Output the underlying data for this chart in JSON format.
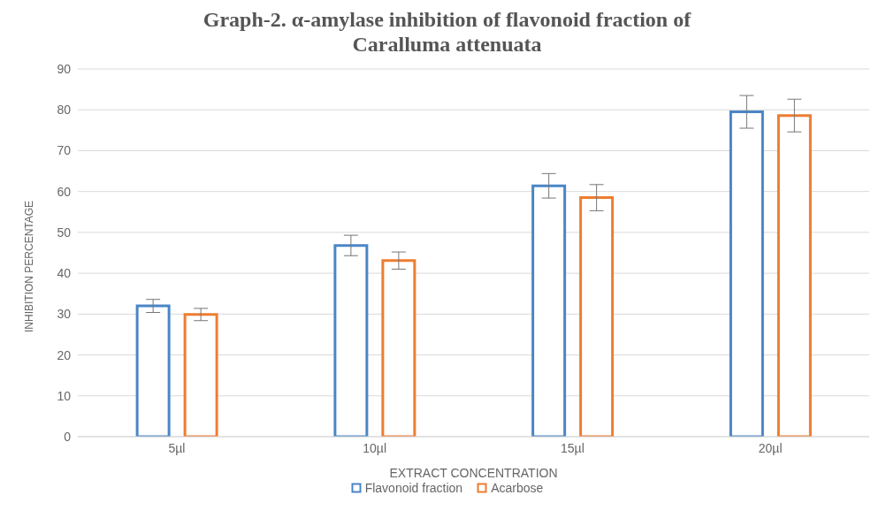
{
  "chart_data": {
    "type": "bar",
    "title": "Graph-2. α-amylase inhibition of flavonoid fraction of Caralluma attenuata",
    "xlabel": "EXTRACT CONCENTRATION",
    "ylabel": "INHIBITION PERCENTAGE",
    "categories": [
      "5µl",
      "10µl",
      "15µl",
      "20µl"
    ],
    "series": [
      {
        "name": "Flavonoid fraction",
        "color": "#4a86c6",
        "values": [
          32.0,
          46.8,
          61.4,
          79.5
        ],
        "errors": [
          1.6,
          2.5,
          3.0,
          4.0
        ]
      },
      {
        "name": "Acarbose",
        "color": "#ed7d31",
        "values": [
          29.9,
          43.1,
          58.5,
          78.6
        ],
        "errors": [
          1.5,
          2.1,
          3.2,
          4.0
        ]
      }
    ],
    "ylim": [
      0,
      90
    ],
    "yticks": [
      0,
      10,
      20,
      30,
      40,
      50,
      60,
      70,
      80,
      90
    ],
    "grid": "y",
    "legend": "bottom"
  }
}
